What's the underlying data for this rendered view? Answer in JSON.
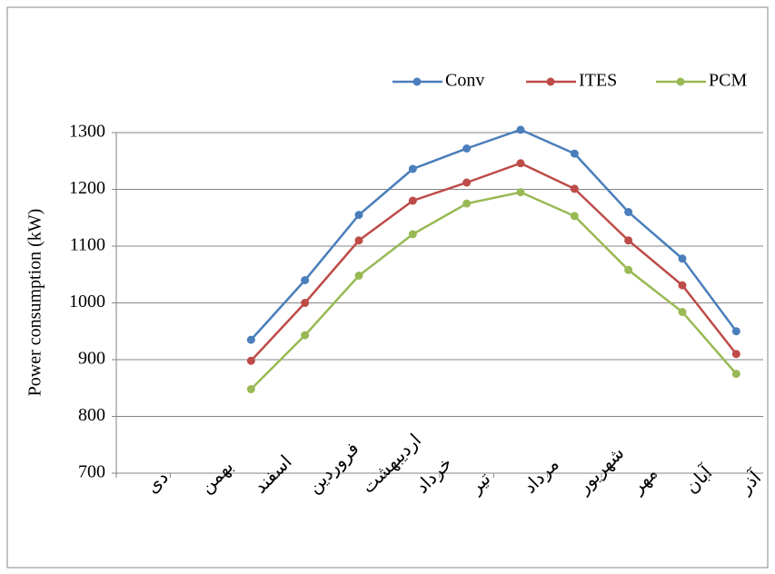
{
  "chart_data": {
    "type": "line",
    "y_label": "Power consumption (kW)",
    "categories": [
      "دی",
      "بهمن",
      "اسفند",
      "فروردین",
      "اردیبهشت",
      "خرداد",
      "تیر",
      "مرداد",
      "شهریور",
      "مهر",
      "آبان",
      "آذر"
    ],
    "series": [
      {
        "name": "Conv",
        "color": "#4a7ebb",
        "values": [
          null,
          null,
          935,
          1040,
          1155,
          1236,
          1272,
          1305,
          1263,
          1160,
          1078,
          950
        ]
      },
      {
        "name": "ITES",
        "color": "#be4b48",
        "values": [
          null,
          null,
          898,
          1000,
          1110,
          1180,
          1212,
          1246,
          1201,
          1110,
          1031,
          910
        ]
      },
      {
        "name": "PCM",
        "color": "#98b954",
        "values": [
          null,
          null,
          848,
          943,
          1048,
          1121,
          1175,
          1195,
          1153,
          1058,
          984,
          875
        ]
      }
    ],
    "ylim": [
      700,
      1300
    ],
    "yticks": [
      700,
      800,
      900,
      1000,
      1100,
      1200,
      1300
    ],
    "grid": true,
    "legend": "top-right"
  }
}
